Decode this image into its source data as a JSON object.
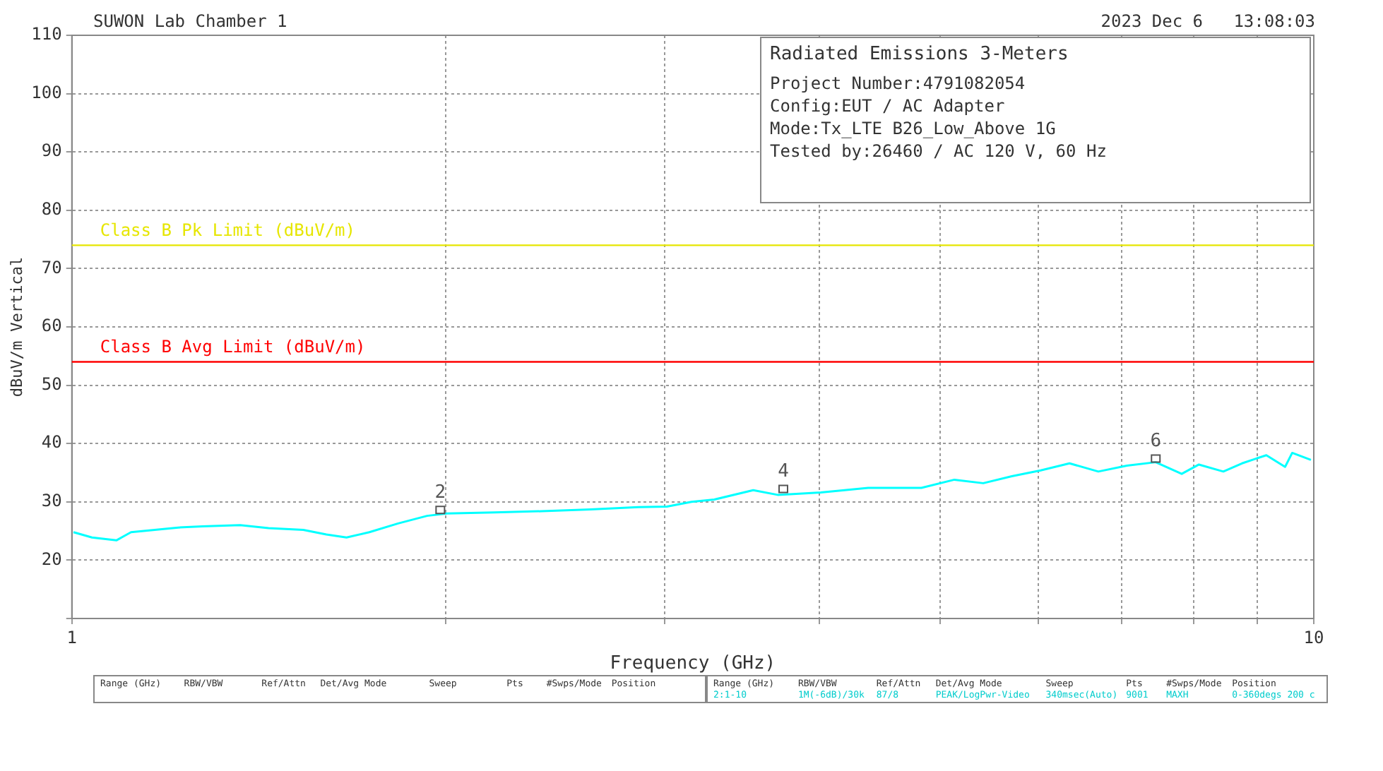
{
  "chart_data": {
    "type": "line",
    "title": "Radiated Emissions 3-Meters",
    "xlabel": "Frequency (GHz)",
    "ylabel": "dBuV/m Vertical",
    "x": [
      1.003,
      1.038,
      1.086,
      1.116,
      1.218,
      1.274,
      1.366,
      1.44,
      1.536,
      1.603,
      1.664,
      1.736,
      1.831,
      1.932,
      2.005,
      2.19,
      2.391,
      2.617,
      2.858,
      3.014,
      3.155,
      3.291,
      3.537,
      3.701,
      4.009,
      4.377,
      4.831,
      5.136,
      5.418,
      5.713,
      6.027,
      6.358,
      6.707,
      7.072,
      7.459,
      7.828,
      8.082,
      8.456,
      8.754,
      9.158,
      9.482,
      9.608,
      9.947
    ],
    "series": [
      {
        "color": "#00ffff",
        "values": [
          24.8,
          23.9,
          23.4,
          24.8,
          25.6,
          25.8,
          26.0,
          25.5,
          25.2,
          24.4,
          23.9,
          24.8,
          26.3,
          27.6,
          28.0,
          28.2,
          28.4,
          28.7,
          29.1,
          29.2,
          30.0,
          30.4,
          32.0,
          31.2,
          31.6,
          32.4,
          32.4,
          33.8,
          33.2,
          34.4,
          35.4,
          36.6,
          35.2,
          36.2,
          36.8,
          34.8,
          36.4,
          35.2,
          36.6,
          38.0,
          36.0,
          38.4,
          37.2
        ]
      }
    ],
    "log": "x",
    "xlim": [
      1,
      10
    ],
    "xticks": [
      1,
      {
        "value": 2,
        "label": null
      },
      {
        "value": 3,
        "label": null
      },
      {
        "value": 4,
        "label": null
      },
      {
        "value": 5,
        "label": null
      },
      {
        "value": 6,
        "label": null
      },
      {
        "value": 7,
        "label": null
      },
      {
        "value": 8,
        "label": null
      },
      {
        "value": 9,
        "label": null
      },
      10
    ],
    "ylim": [
      10,
      110
    ],
    "yticks": [
      {
        "value": 10,
        "label": null
      },
      20,
      30,
      40,
      50,
      60,
      70,
      80,
      90,
      100,
      110
    ],
    "grid": true,
    "marker": "none",
    "ref_lines": [
      {
        "axis": "y",
        "value": 74,
        "label": "Class B Pk Limit (dBuV/m)",
        "color": "#e6e600"
      },
      {
        "axis": "y",
        "value": 54,
        "label": "Class B Avg Limit (dBuV/m)",
        "color": "#ff0000"
      }
    ],
    "annotations": [
      "SUWON Lab Chamber 1",
      "2023 Dec 6   13:08:03",
      "Project Number:4791082054",
      "Config:EUT / AC Adapter",
      "Mode:Tx_LTE B26_Low_Above 1G",
      "Tested by:26460 / AC 120 V, 60 Hz",
      "Range (GHz)  RBW/VBW  Ref/Attn  Det/Avg Mode  Sweep  Pts  #Swps/Mode  Position",
      "Range (GHz)  RBW/VBW  Ref/Attn  Det/Avg Mode  Sweep  Pts  #Swps/Mode  Position",
      "2:1-10  1M(-6dB)/30k  87/8  PEAK/LogPwr-Video  340msec(Auto)  9001  MAXH  0-360degs 200 c",
      {
        "text": "2",
        "x": 1.98,
        "y": 28.5
      },
      {
        "text": "4",
        "x": 3.74,
        "y": 32.1
      },
      {
        "text": "6",
        "x": 7.46,
        "y": 37.3
      }
    ]
  }
}
